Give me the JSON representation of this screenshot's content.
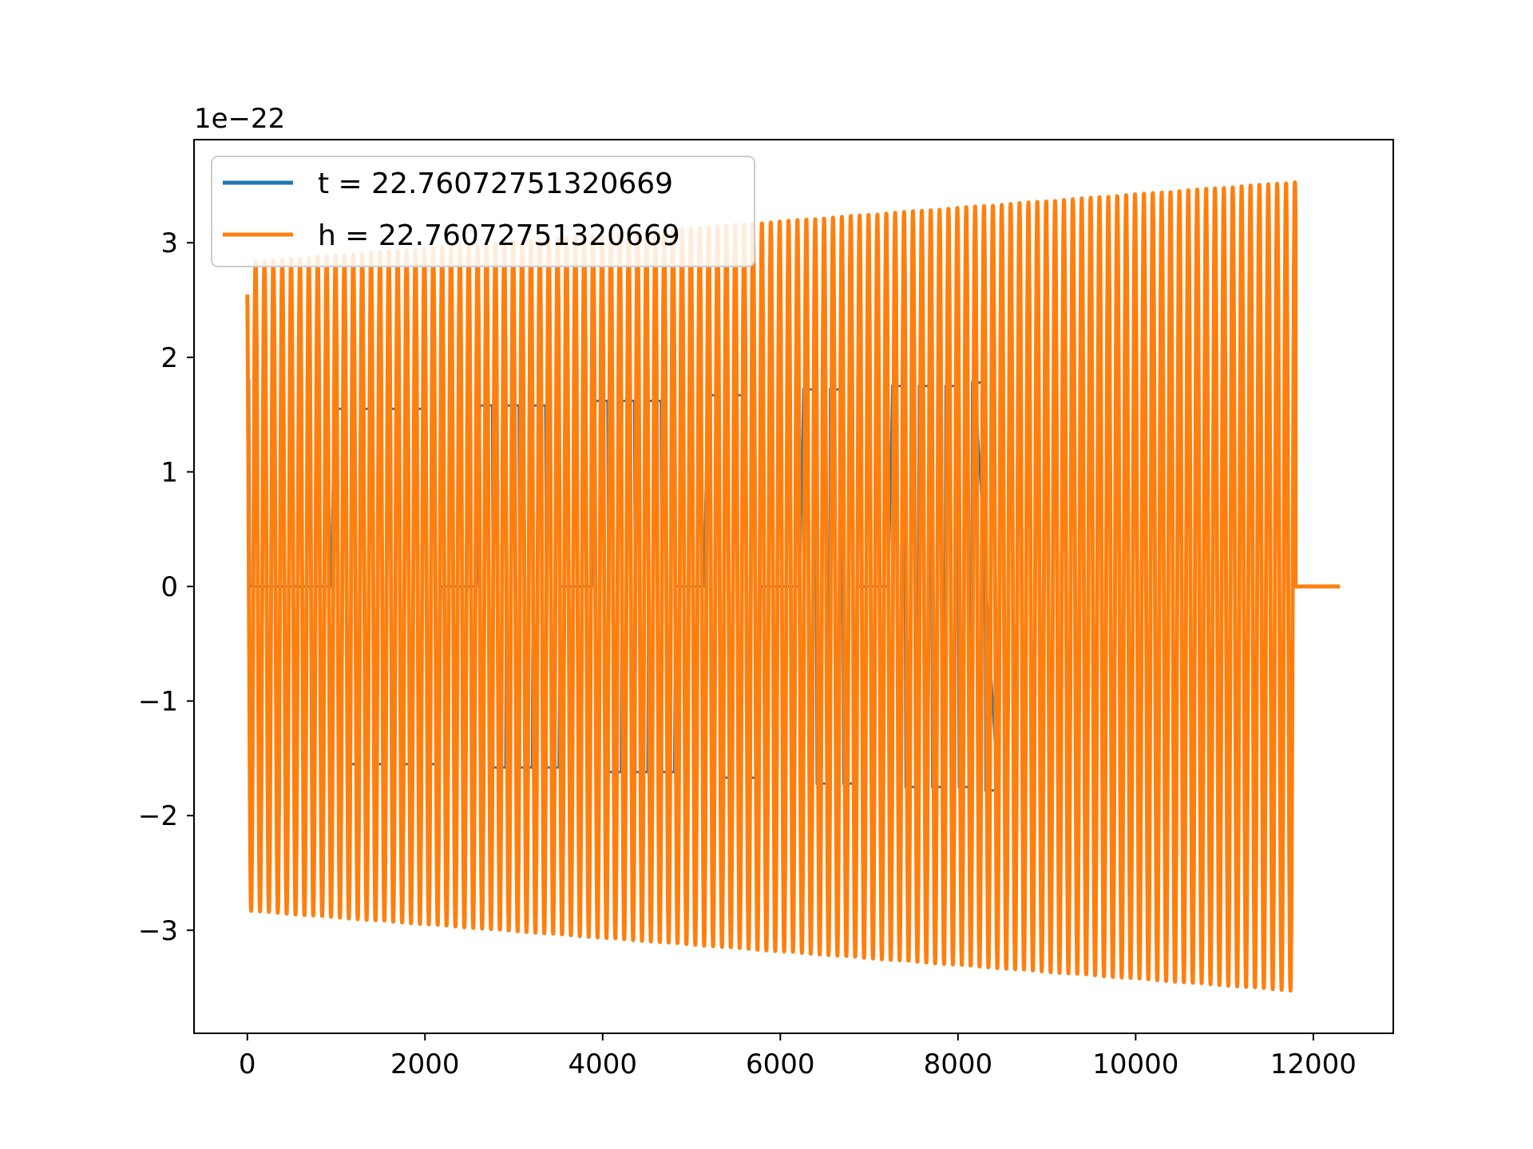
{
  "chart_data": {
    "type": "line",
    "title": "",
    "xlabel": "",
    "ylabel": "",
    "offset_label": "1e−22",
    "xlim": [
      -600,
      12900
    ],
    "ylim": [
      -3.9,
      3.9
    ],
    "xticks": [
      0,
      2000,
      4000,
      6000,
      8000,
      10000,
      12000
    ],
    "xtick_labels": [
      "0",
      "2000",
      "4000",
      "6000",
      "8000",
      "10000",
      "12000"
    ],
    "yticks": [
      -3,
      -2,
      -1,
      0,
      1,
      2,
      3
    ],
    "ytick_labels": [
      "−3",
      "−2",
      "−1",
      "0",
      "1",
      "2",
      "3"
    ],
    "grid": false,
    "legend_position": "upper-left",
    "series": [
      {
        "name": "t = 22.76072751320669",
        "color": "#1f77b4",
        "x_start": 0,
        "x_end": 8192,
        "amplitude_start": 1.8,
        "amplitude_end": 1.8,
        "min_amplitude": 1.52,
        "max_amplitude": 1.78,
        "waveform": "square-like bursts with quiet gaps",
        "burst_ranges": [
          [
            950,
            1950
          ],
          [
            2600,
            3300
          ],
          [
            3900,
            4650
          ],
          [
            5150,
            5750
          ],
          [
            6250,
            6850
          ],
          [
            7250,
            7950
          ],
          [
            8050,
            8192
          ]
        ],
        "burst_amplitudes": [
          1.55,
          1.58,
          1.62,
          1.67,
          1.72,
          1.75,
          1.78
        ]
      },
      {
        "name": "h = 22.76072751320669",
        "color": "#ff7f0e",
        "x_start": 0,
        "x_end": 11800,
        "amplitude_start": 2.83,
        "amplitude_end": 3.53,
        "cycles": 118,
        "tail_x_end": 12300,
        "tail_value": 0
      }
    ]
  }
}
